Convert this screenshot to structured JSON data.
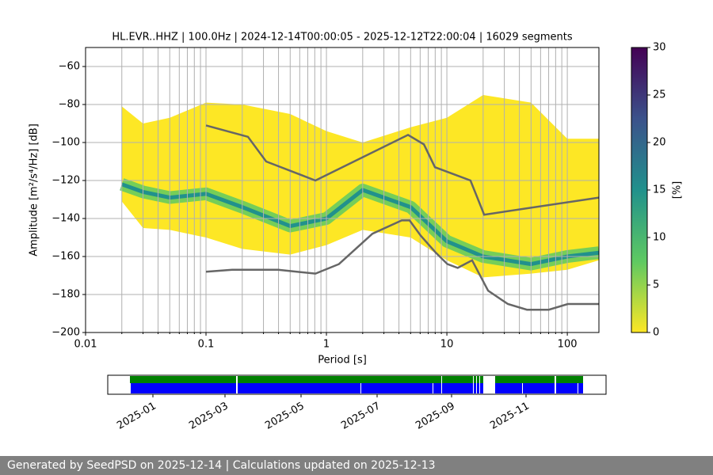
{
  "chart_data": {
    "type": "line",
    "title": "HL.EVR..HHZ | 100.0Hz | 2024-12-14T00:00:05 - 2025-12-12T22:00:04 | 16029 segments",
    "xlabel": "Period [s]",
    "ylabel": "Amplitude [m²/s⁴/Hz] [dB]",
    "log_x": true,
    "grid": true,
    "xlim": [
      0.01,
      183
    ],
    "ylim": [
      -200,
      -50
    ],
    "xticks": [
      0.01,
      0.1,
      1,
      10,
      100
    ],
    "xminorticks": [
      0.02,
      0.03,
      0.04,
      0.05,
      0.06,
      0.07,
      0.08,
      0.09,
      0.2,
      0.3,
      0.4,
      0.5,
      0.6,
      0.7,
      0.8,
      0.9,
      2,
      3,
      4,
      5,
      6,
      7,
      8,
      9,
      20,
      30,
      40,
      50,
      60,
      70,
      80,
      90
    ],
    "yticks": [
      {
        "value": -200,
        "label": "−200"
      },
      {
        "value": -180,
        "label": "−180"
      },
      {
        "value": -160,
        "label": "−160"
      },
      {
        "value": -140,
        "label": "−140"
      },
      {
        "value": -120,
        "label": "−120"
      },
      {
        "value": -100,
        "label": "−100"
      },
      {
        "value": -80,
        "label": "−80"
      },
      {
        "value": -60,
        "label": "−60"
      }
    ],
    "series": [
      {
        "color": "#666666",
        "x": [
          0.1,
          0.223,
          0.316,
          0.81,
          4.76,
          6.45,
          7.96,
          15.7,
          20.4,
          183
        ],
        "values": [
          -91,
          -97,
          -110,
          -120,
          -96,
          -101,
          -113,
          -120,
          -138,
          -129
        ]
      },
      {
        "color": "#666666",
        "x": [
          0.1,
          0.165,
          0.397,
          0.81,
          1.27,
          2.41,
          4.22,
          4.9,
          6.06,
          8.09,
          10.1,
          12.3,
          16.2,
          22,
          32.1,
          46.2,
          70.2,
          101,
          150,
          183
        ],
        "values": [
          -168,
          -167,
          -167,
          -169,
          -164,
          -148,
          -141,
          -141,
          -149,
          -158,
          -164,
          -166,
          -162,
          -178,
          -185,
          -188,
          -188,
          -185,
          -185,
          -185
        ]
      }
    ],
    "density": {
      "colors": [
        "#fde725",
        "#5ec962",
        "#21918c"
      ],
      "x": [
        0.02,
        0.03,
        0.05,
        0.1,
        0.2,
        0.5,
        1,
        2,
        5,
        10,
        20,
        50,
        100,
        183
      ],
      "upper": [
        -81,
        -90,
        -87,
        -79,
        -80,
        -85,
        -94,
        -100,
        -92,
        -87,
        -75,
        -79,
        -98,
        -98
      ],
      "lower": [
        -131,
        -145,
        -146,
        -150,
        -156,
        -159,
        -154,
        -146,
        -150,
        -162,
        -171,
        -169,
        -167,
        -162
      ],
      "mode": [
        -122,
        -126,
        -129,
        -127,
        -134,
        -144,
        -140,
        -125,
        -134,
        -152,
        -160,
        -164,
        -160,
        -158
      ]
    },
    "colorbar": {
      "label": "[%]",
      "lim": [
        0,
        30
      ],
      "ticks": [
        0,
        5,
        10,
        15,
        20,
        25,
        30
      ]
    },
    "timeline": {
      "ticks": [
        "2025-01",
        "2025-03",
        "2025-05",
        "2025-07",
        "2025-09",
        "2025-11"
      ]
    }
  },
  "footer": "Generated by SeedPSD on 2025-12-14 | Calculations updated on 2025-12-13"
}
